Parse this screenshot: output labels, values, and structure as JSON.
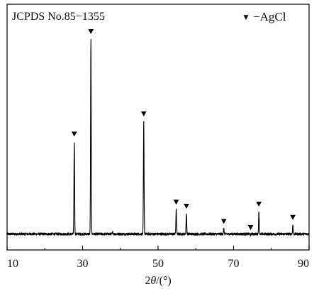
{
  "chart_data": {
    "type": "line",
    "title": "",
    "annotation_top_left": "JCPDS No.85−1355",
    "legend": {
      "position": "top-right",
      "marker": "▼",
      "label": "−AgCl"
    },
    "xlabel_prefix": "2",
    "xlabel_symbol": "θ",
    "xlabel_suffix": "/(°)",
    "ylabel": "",
    "xlim": [
      10,
      90
    ],
    "ylim": [
      0,
      100
    ],
    "xticks": [
      10,
      30,
      50,
      70,
      90
    ],
    "xtick_labels": [
      "10",
      "30",
      "50",
      "70",
      "90"
    ],
    "grid": false,
    "series": [
      {
        "baseline": 4,
        "noise_amplitude": 0.6,
        "peaks": [
          {
            "x": 27.8,
            "y": 49.5,
            "marked": true
          },
          {
            "x": 32.2,
            "y": 100,
            "marked": true
          },
          {
            "x": 38.0,
            "y": 5.0,
            "marked": false
          },
          {
            "x": 46.2,
            "y": 59.5,
            "marked": true
          },
          {
            "x": 54.8,
            "y": 16.0,
            "marked": true
          },
          {
            "x": 57.5,
            "y": 14.0,
            "marked": true
          },
          {
            "x": 67.4,
            "y": 6.5,
            "marked": true
          },
          {
            "x": 74.5,
            "y": 3.5,
            "marked": true
          },
          {
            "x": 76.7,
            "y": 15.0,
            "marked": true
          },
          {
            "x": 85.7,
            "y": 8.5,
            "marked": true
          }
        ]
      }
    ],
    "colors": {
      "line": "#000000",
      "axis": "#000000",
      "marker": "#000000",
      "background": "#ffffff"
    }
  }
}
